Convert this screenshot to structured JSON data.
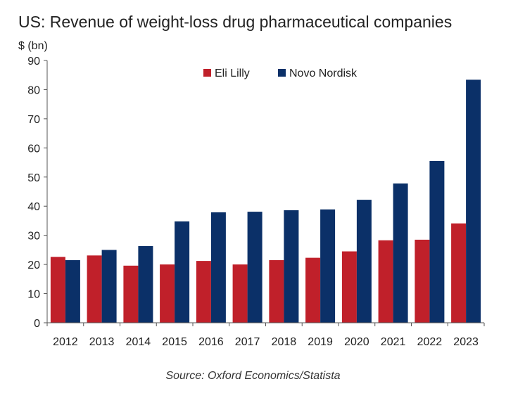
{
  "chart_data": {
    "type": "bar",
    "title": "US: Revenue of weight-loss drug pharmaceutical companies",
    "ylabel": "$ (bn)",
    "xlabel": "",
    "ylim": [
      0,
      90
    ],
    "yticks": [
      0,
      10,
      20,
      30,
      40,
      50,
      60,
      70,
      80,
      90
    ],
    "categories": [
      "2012",
      "2013",
      "2014",
      "2015",
      "2016",
      "2017",
      "2018",
      "2019",
      "2020",
      "2021",
      "2022",
      "2023"
    ],
    "series": [
      {
        "name": "Eli Lilly",
        "color": "#c0202a",
        "values": [
          22.6,
          23.1,
          19.6,
          20.0,
          21.2,
          20.0,
          21.5,
          22.3,
          24.5,
          28.3,
          28.5,
          34.1
        ]
      },
      {
        "name": "Novo Nordisk",
        "color": "#0b3068",
        "values": [
          21.5,
          25.0,
          26.3,
          34.8,
          37.9,
          38.1,
          38.6,
          38.9,
          42.2,
          47.8,
          55.5,
          83.4
        ]
      }
    ],
    "legend": "top-center",
    "grid": false
  },
  "source": "Source: Oxford Economics/Statista"
}
